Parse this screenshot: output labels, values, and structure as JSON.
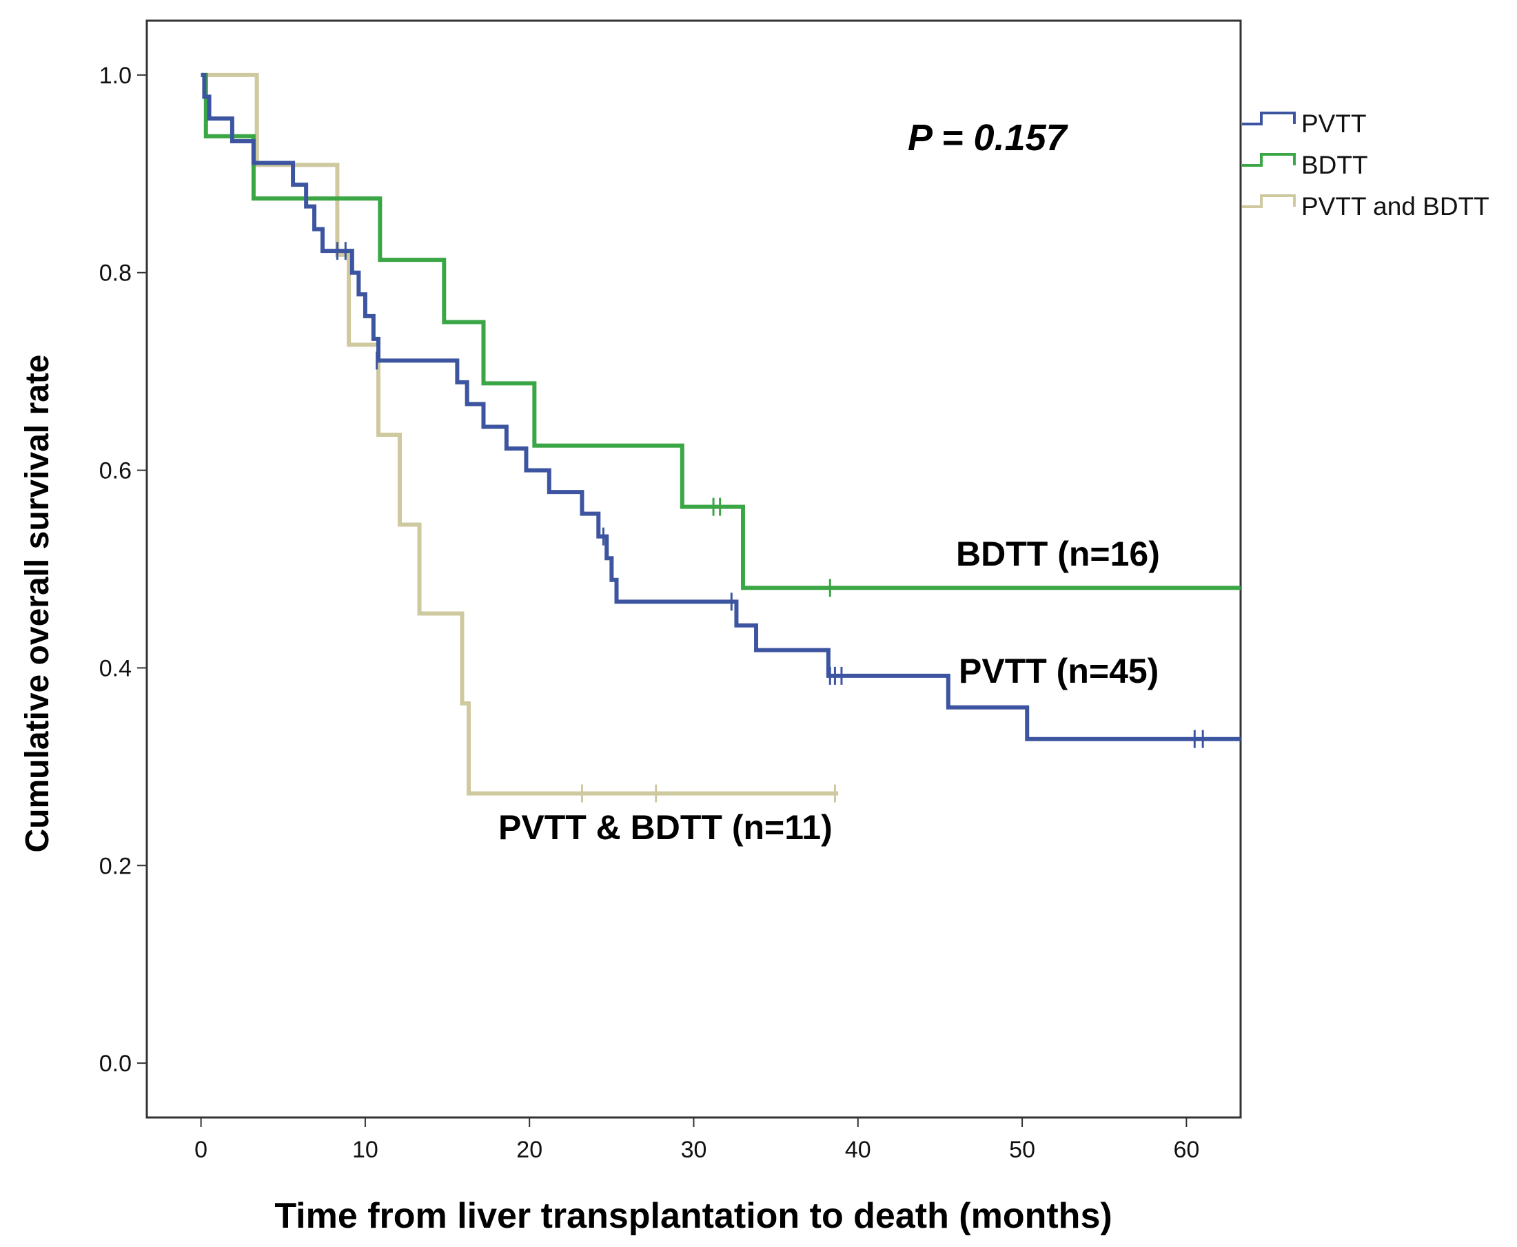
{
  "chart_data": {
    "type": "line",
    "subtype": "kaplan-meier",
    "xlabel": "Time from liver transplantation to death (months)",
    "ylabel": "Cumulative overall survival rate",
    "xlim": [
      -3.3,
      63.3
    ],
    "ylim": [
      -0.055,
      1.055
    ],
    "xticks": [
      0,
      10,
      20,
      30,
      40,
      50,
      60
    ],
    "yticks": [
      0.0,
      0.2,
      0.4,
      0.6,
      0.8,
      1.0
    ],
    "ytick_labels": [
      "0.0",
      "0.2",
      "0.4",
      "0.6",
      "0.8",
      "1.0"
    ],
    "p_value_text": "P = 0.157",
    "legend": [
      "PVTT",
      "BDTT",
      "PVTT and BDTT"
    ],
    "series": [
      {
        "name": "PVTT",
        "label": "PVTT (n=45)",
        "color": "#3d55a0",
        "x": [
          0,
          0.2,
          0.5,
          1.9,
          3.2,
          5.6,
          6.4,
          6.9,
          7.4,
          7.9,
          8.4,
          9.2,
          9.6,
          10.0,
          10.5,
          10.8,
          15.6,
          16.2,
          17.2,
          18.6,
          19.8,
          21.2,
          23.2,
          24.2,
          24.7,
          25.0,
          25.3,
          32.6,
          33.8,
          38.2,
          45.5,
          50.3,
          63.3
        ],
        "y": [
          1.0,
          0.978,
          0.956,
          0.933,
          0.911,
          0.889,
          0.867,
          0.844,
          0.822,
          0.822,
          0.822,
          0.8,
          0.778,
          0.756,
          0.733,
          0.711,
          0.689,
          0.667,
          0.644,
          0.622,
          0.6,
          0.578,
          0.556,
          0.533,
          0.511,
          0.489,
          0.467,
          0.443,
          0.418,
          0.392,
          0.36,
          0.328,
          0.328
        ],
        "censor_x": [
          8.3,
          8.8,
          10.7,
          24.5,
          32.3,
          38.3,
          38.6,
          39.0,
          60.5,
          61.0
        ],
        "censor_y": [
          0.822,
          0.822,
          0.711,
          0.533,
          0.467,
          0.392,
          0.392,
          0.392,
          0.328,
          0.328
        ]
      },
      {
        "name": "BDTT",
        "label": "BDTT (n=16)",
        "color": "#3aa645",
        "x": [
          0,
          0.3,
          3.2,
          10.9,
          14.8,
          17.2,
          20.3,
          29.3,
          33.0,
          63.3
        ],
        "y": [
          1.0,
          0.938,
          0.875,
          0.813,
          0.75,
          0.688,
          0.625,
          0.563,
          0.481,
          0.481
        ],
        "censor_x": [
          31.2,
          31.6,
          38.3
        ],
        "censor_y": [
          0.563,
          0.563,
          0.481
        ]
      },
      {
        "name": "PVTT and BDTT",
        "label": "PVTT & BDTT (n=11)",
        "color": "#cfc9a0",
        "x": [
          0,
          3.4,
          8.3,
          9.0,
          10.8,
          12.1,
          13.3,
          15.9,
          16.3,
          38.8
        ],
        "y": [
          1.0,
          0.909,
          0.818,
          0.727,
          0.636,
          0.545,
          0.455,
          0.364,
          0.273,
          0.273
        ],
        "censor_x": [
          23.2,
          27.7,
          38.6
        ],
        "censor_y": [
          0.273,
          0.273,
          0.273
        ]
      }
    ]
  }
}
